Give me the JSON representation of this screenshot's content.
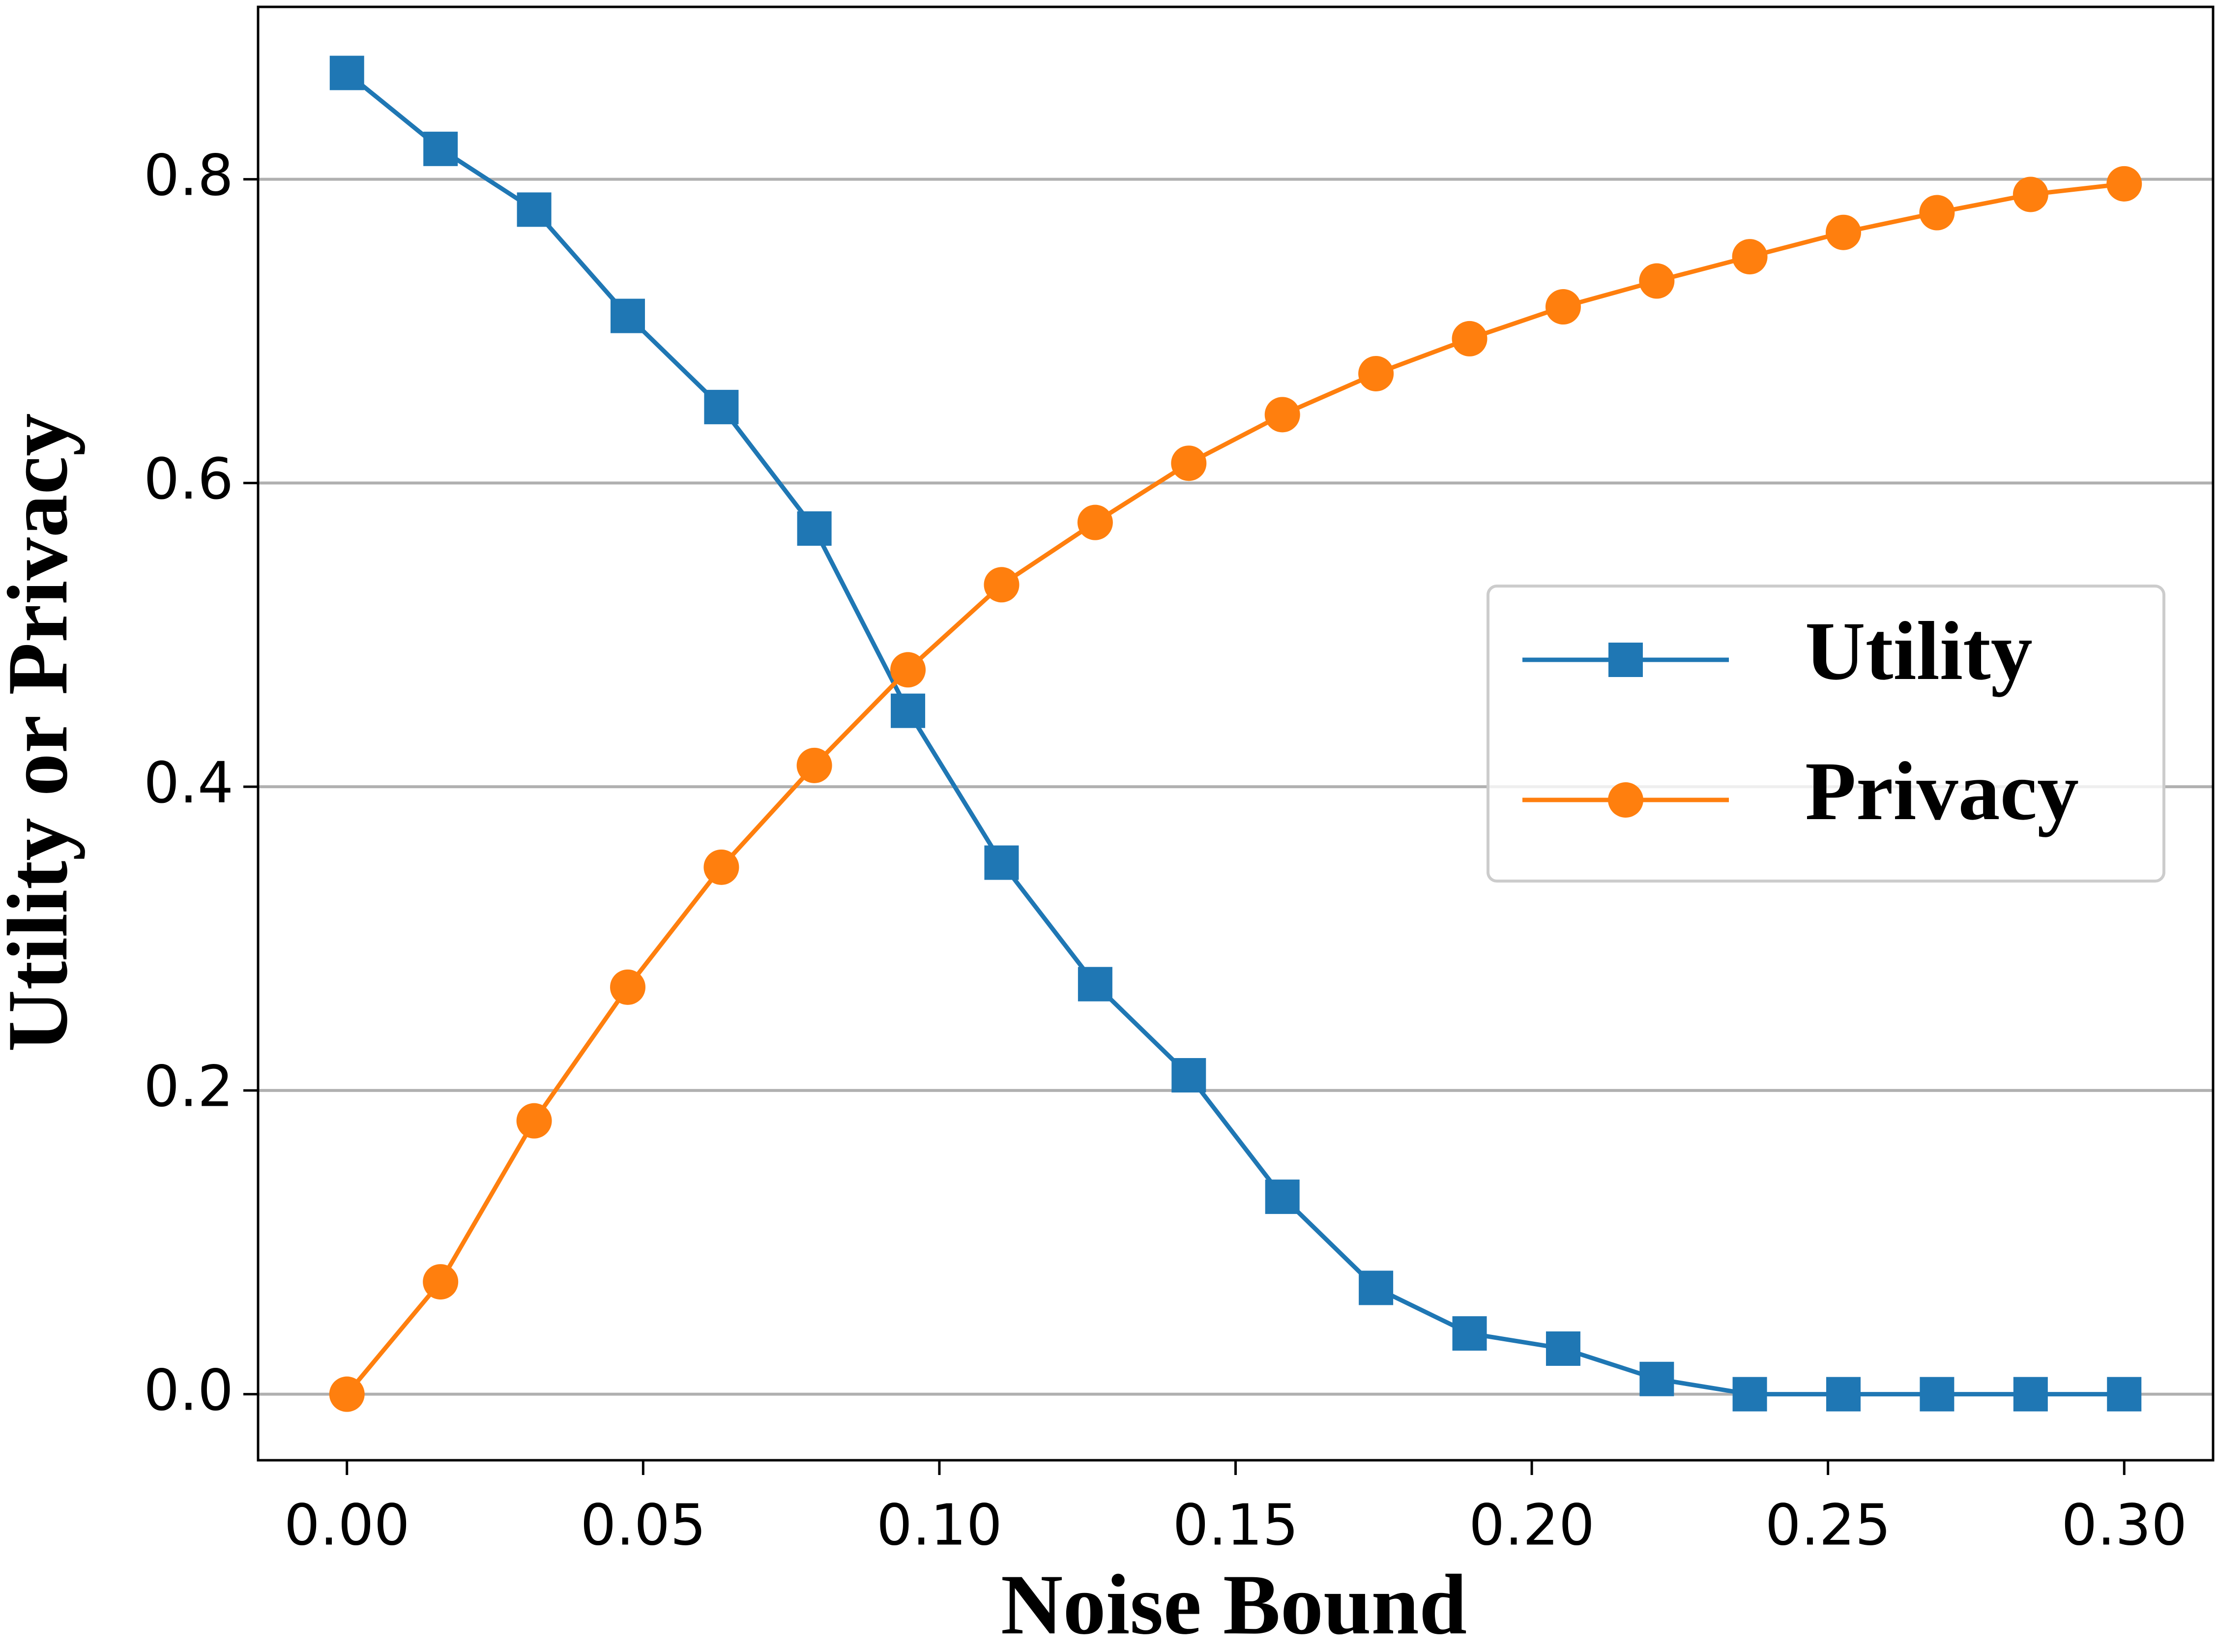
{
  "chart_data": {
    "type": "line",
    "xlabel": "Noise Bound",
    "ylabel": "Utility or Privacy",
    "x": [
      0,
      0.0158,
      0.0316,
      0.0474,
      0.0632,
      0.0789,
      0.0947,
      0.1105,
      0.1263,
      0.1421,
      0.1579,
      0.1737,
      0.1895,
      0.2053,
      0.2211,
      0.2368,
      0.2526,
      0.2684,
      0.2842,
      0.3
    ],
    "series": [
      {
        "name": "Utility",
        "color": "#1f77b4",
        "marker": "square",
        "values": [
          0.87,
          0.82,
          0.78,
          0.71,
          0.65,
          0.57,
          0.45,
          0.35,
          0.27,
          0.21,
          0.13,
          0.07,
          0.04,
          0.03,
          0.01,
          0,
          0,
          0,
          0,
          0
        ]
      },
      {
        "name": "Privacy",
        "color": "#ff7f0e",
        "marker": "circle",
        "values": [
          0,
          0.074,
          0.18,
          0.268,
          0.347,
          0.414,
          0.477,
          0.533,
          0.574,
          0.613,
          0.645,
          0.672,
          0.695,
          0.716,
          0.733,
          0.749,
          0.765,
          0.778,
          0.79,
          0.797
        ]
      }
    ],
    "xlim": [
      -0.015,
      0.315
    ],
    "ylim": [
      -0.0435,
      0.9135
    ],
    "xticks": [
      {
        "value": 0,
        "label": "0.00"
      },
      {
        "value": 0.05,
        "label": "0.05"
      },
      {
        "value": 0.1,
        "label": "0.10"
      },
      {
        "value": 0.15,
        "label": "0.15"
      },
      {
        "value": 0.2,
        "label": "0.20"
      },
      {
        "value": 0.25,
        "label": "0.25"
      },
      {
        "value": 0.3,
        "label": "0.30"
      }
    ],
    "yticks": [
      {
        "value": 0,
        "label": "0.0"
      },
      {
        "value": 0.2,
        "label": "0.2"
      },
      {
        "value": 0.4,
        "label": "0.4"
      },
      {
        "value": 0.6,
        "label": "0.6"
      },
      {
        "value": 0.8,
        "label": "0.8"
      }
    ],
    "grid": "y",
    "legend": "center right"
  }
}
